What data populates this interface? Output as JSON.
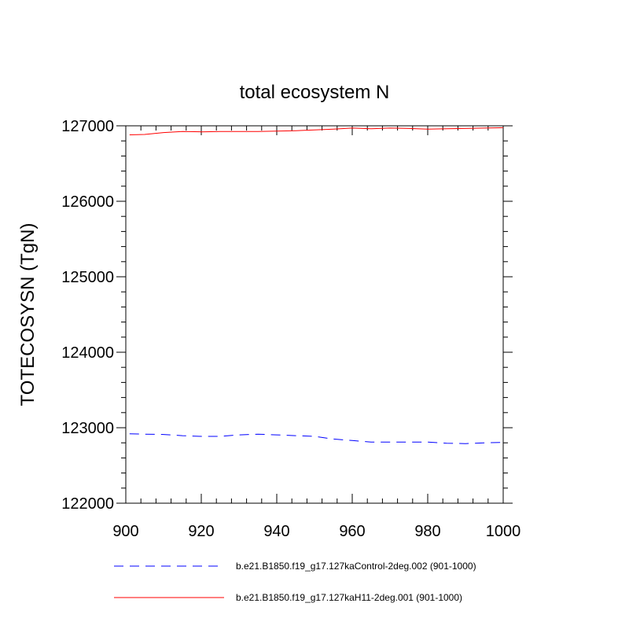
{
  "chart_data": {
    "type": "line",
    "title": "total ecosystem N",
    "xlabel": "",
    "ylabel": "TOTECOSYSN  (TgN)",
    "xlim": [
      900,
      1000
    ],
    "ylim": [
      122000,
      127000
    ],
    "xticks": [
      900,
      920,
      940,
      960,
      980,
      1000
    ],
    "xtick_labels": [
      "900",
      "920",
      "940",
      "960",
      "980",
      "1000"
    ],
    "yticks": [
      122000,
      123000,
      124000,
      125000,
      126000,
      127000
    ],
    "ytick_labels": [
      "122000",
      "123000",
      "124000",
      "125000",
      "126000",
      "127000"
    ],
    "grid": false,
    "legend_position": "bottom",
    "series": [
      {
        "name": "b.e21.B1850.f19_g17.127kaControl-2deg.002 (901-1000)",
        "color": "#0000ff",
        "dash": "dashed",
        "x": [
          901,
          905,
          910,
          915,
          920,
          925,
          930,
          935,
          940,
          945,
          950,
          955,
          960,
          965,
          970,
          975,
          980,
          985,
          990,
          995,
          1000
        ],
        "y": [
          122920,
          122915,
          122910,
          122895,
          122885,
          122885,
          122905,
          122915,
          122905,
          122895,
          122885,
          122850,
          122830,
          122810,
          122810,
          122810,
          122810,
          122795,
          122790,
          122800,
          122805
        ]
      },
      {
        "name": "b.e21.B1850.f19_g17.127kaH11-2deg.001 (901-1000)",
        "color": "#ff0000",
        "dash": "solid",
        "x": [
          901,
          905,
          910,
          915,
          920,
          925,
          930,
          935,
          940,
          945,
          950,
          955,
          960,
          965,
          970,
          975,
          980,
          985,
          990,
          995,
          1000
        ],
        "y": [
          126880,
          126885,
          126910,
          126925,
          126920,
          126925,
          126925,
          126925,
          126930,
          126935,
          126945,
          126955,
          126970,
          126960,
          126970,
          126965,
          126955,
          126960,
          126965,
          126970,
          126975
        ]
      }
    ]
  }
}
